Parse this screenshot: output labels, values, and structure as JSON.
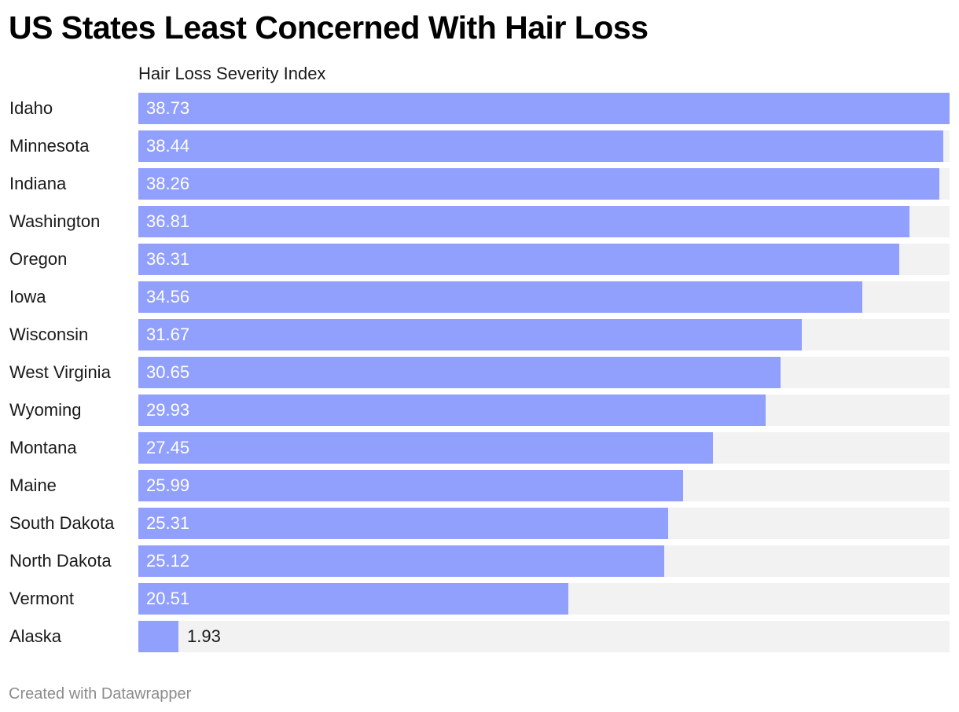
{
  "title": "US States Least Concerned With Hair Loss",
  "footer": {
    "credit": "Created with Datawrapper"
  },
  "colors": {
    "bar": "#919ffd",
    "track": "#f2f2f2"
  },
  "chart_data": {
    "type": "bar",
    "orientation": "horizontal",
    "title": "US States Least Concerned With Hair Loss",
    "column_header": "Hair Loss Severity Index",
    "categories": [
      "Idaho",
      "Minnesota",
      "Indiana",
      "Washington",
      "Oregon",
      "Iowa",
      "Wisconsin",
      "West Virginia",
      "Wyoming",
      "Montana",
      "Maine",
      "South Dakota",
      "North Dakota",
      "Vermont",
      "Alaska"
    ],
    "values": [
      38.73,
      38.44,
      38.26,
      36.81,
      36.31,
      34.56,
      31.67,
      30.65,
      29.93,
      27.45,
      25.99,
      25.31,
      25.12,
      20.51,
      1.93
    ],
    "value_labels": [
      "38.73",
      "38.44",
      "38.26",
      "36.81",
      "36.31",
      "34.56",
      "31.67",
      "30.65",
      "29.93",
      "27.45",
      "25.99",
      "25.31",
      "25.12",
      "20.51",
      "1.93"
    ],
    "xlim": [
      0,
      38.73
    ],
    "grid": false,
    "legend": "none"
  }
}
